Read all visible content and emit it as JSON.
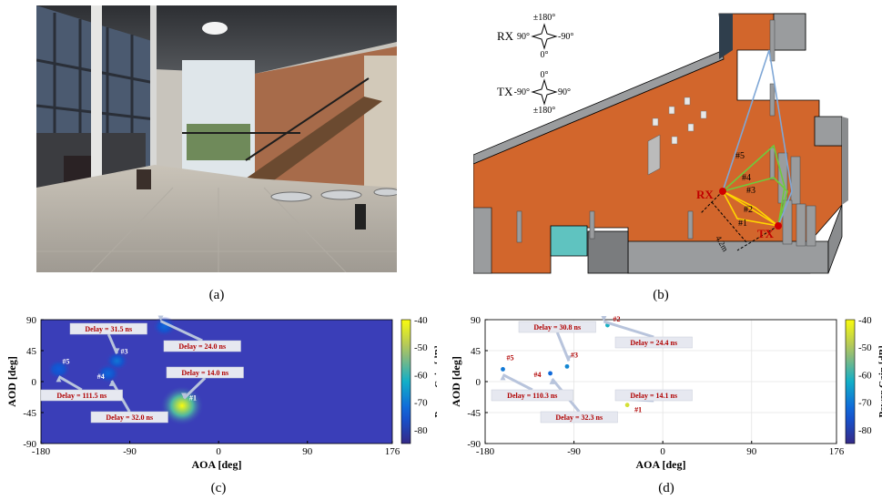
{
  "captions": {
    "a": "(a)",
    "b": "(b)",
    "c": "(c)",
    "d": "(d)"
  },
  "scene": {
    "rx_legend": {
      "label": "RX",
      "top": "±180°",
      "left": "90°",
      "right": "-90°",
      "bottom": "0°"
    },
    "tx_legend": {
      "label": "TX",
      "top": "0°",
      "left": "-90°",
      "right": "90°",
      "bottom": "±180°"
    },
    "rx_label": "RX",
    "tx_label": "TX",
    "distance_label": "4.2m",
    "path_labels": [
      "#1",
      "#2",
      "#3",
      "#4",
      "#5"
    ]
  },
  "colors": {
    "floor": "#d2662c",
    "wall": "#9a9c9e",
    "path_yellow": "#ffd700",
    "path_green": "#6ecb3c",
    "path_blue": "#7fa7d6",
    "marker_red": "#d00000",
    "heatmap_bg": "#3a3eb8",
    "annot_text": "#b00000",
    "annot_box": "#e6e8f0"
  },
  "chart_data": [
    {
      "type": "heatmap",
      "xlabel": "AOA [deg]",
      "ylabel": "AOD [deg]",
      "xticks": [
        "-180",
        "-90",
        "0",
        "90",
        "176"
      ],
      "yticks": [
        "90",
        "45",
        "0",
        "-45",
        "-90"
      ],
      "xlim": [
        -180,
        176
      ],
      "ylim": [
        -90,
        90
      ],
      "colorbar": {
        "label": "Power Gain [dB]",
        "ticks": [
          "-40",
          "-50",
          "-60",
          "-70",
          "-80"
        ],
        "range": [
          -85,
          -40
        ]
      },
      "points": [
        {
          "id": "#1",
          "aoa": -37,
          "aod": -35,
          "delay": "Delay = 14.0 ns",
          "gain": -40
        },
        {
          "id": "#2",
          "aoa": -55,
          "aod": 80,
          "delay": "Delay = 24.0 ns",
          "gain": -72
        },
        {
          "id": "#3",
          "aoa": -103,
          "aod": 30,
          "delay": "Delay = 31.5 ns",
          "gain": -70
        },
        {
          "id": "#4",
          "aoa": -112,
          "aod": 12,
          "delay": "Delay = 32.0 ns",
          "gain": -72
        },
        {
          "id": "#5",
          "aoa": -162,
          "aod": 18,
          "delay": "Delay = 111.5 ns",
          "gain": -74
        }
      ]
    },
    {
      "type": "scatter",
      "xlabel": "AOA [deg]",
      "ylabel": "AOD [deg]",
      "xticks": [
        "-180",
        "-90",
        "0",
        "90",
        "176"
      ],
      "yticks": [
        "90",
        "45",
        "0",
        "-45",
        "-90"
      ],
      "xlim": [
        -180,
        176
      ],
      "ylim": [
        -90,
        90
      ],
      "colorbar": {
        "label": "Power Gain [dB]",
        "ticks": [
          "-40",
          "-50",
          "-60",
          "-70",
          "-80"
        ],
        "range": [
          -85,
          -40
        ]
      },
      "points": [
        {
          "id": "#1",
          "aoa": -36,
          "aod": -34,
          "delay": "Delay = 14.1 ns",
          "gain": -45
        },
        {
          "id": "#2",
          "aoa": -56,
          "aod": 82,
          "delay": "Delay = 24.4 ns",
          "gain": -62
        },
        {
          "id": "#3",
          "aoa": -97,
          "aod": 22,
          "delay": "Delay = 30.8 ns",
          "gain": -68
        },
        {
          "id": "#4",
          "aoa": -114,
          "aod": 12,
          "delay": "Delay = 32.3 ns",
          "gain": -72
        },
        {
          "id": "#5",
          "aoa": -162,
          "aod": 18,
          "delay": "Delay = 110.3 ns",
          "gain": -70
        }
      ]
    }
  ]
}
